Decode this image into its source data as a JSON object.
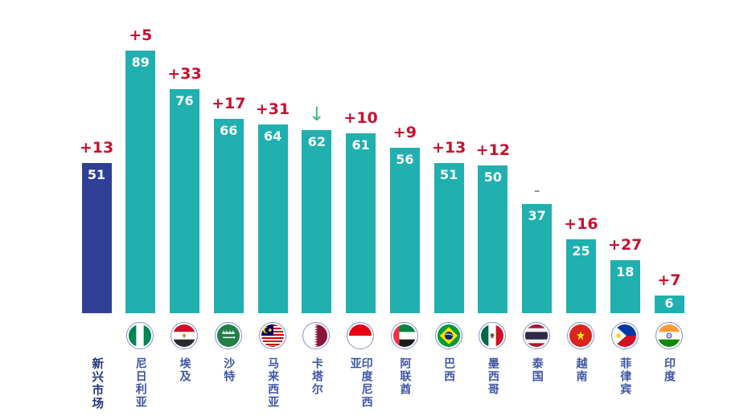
{
  "chart_data": {
    "type": "bar",
    "title": "",
    "xlabel": "",
    "ylabel": "",
    "ylim": [
      0,
      89
    ],
    "grid": false,
    "legend": "none",
    "categories": [
      "新兴市场",
      "尼日利亚",
      "埃及",
      "沙特",
      "马来西亚",
      "卡塔尔",
      "印度尼西亚",
      "阿联酋",
      "巴西",
      "墨西哥",
      "泰国",
      "越南",
      "菲律宾",
      "印度"
    ],
    "values": [
      51,
      89,
      76,
      66,
      64,
      62,
      61,
      56,
      51,
      50,
      37,
      25,
      18,
      6
    ],
    "changes": [
      "+13",
      "+5",
      "+33",
      "+17",
      "+31",
      "↓",
      "+10",
      "+9",
      "+13",
      "+12",
      "–",
      "+16",
      "+27",
      "+7"
    ],
    "bars": [
      {
        "label": "新兴市场",
        "value": 51,
        "change": "+13",
        "change_type": "up",
        "flag": null,
        "highlight": true
      },
      {
        "label": "尼日利亚",
        "value": 89,
        "change": "+5",
        "change_type": "up",
        "flag": "nigeria",
        "highlight": false
      },
      {
        "label": "埃及",
        "value": 76,
        "change": "+33",
        "change_type": "up",
        "flag": "egypt",
        "highlight": false
      },
      {
        "label": "沙特",
        "value": 66,
        "change": "+17",
        "change_type": "up",
        "flag": "saudi",
        "highlight": false
      },
      {
        "label": "马来西亚",
        "value": 64,
        "change": "+31",
        "change_type": "up",
        "flag": "malaysia",
        "highlight": false
      },
      {
        "label": "卡塔尔",
        "value": 62,
        "change": "↓",
        "change_type": "down",
        "flag": "qatar",
        "highlight": false
      },
      {
        "label": "印度尼西亚",
        "value": 61,
        "change": "+10",
        "change_type": "up",
        "flag": "indonesia",
        "highlight": false
      },
      {
        "label": "阿联酋",
        "value": 56,
        "change": "+9",
        "change_type": "up",
        "flag": "uae",
        "highlight": false
      },
      {
        "label": "巴西",
        "value": 51,
        "change": "+13",
        "change_type": "up",
        "flag": "brazil",
        "highlight": false
      },
      {
        "label": "墨西哥",
        "value": 50,
        "change": "+12",
        "change_type": "up",
        "flag": "mexico",
        "highlight": false
      },
      {
        "label": "泰国",
        "value": 37,
        "change": "–",
        "change_type": "flat",
        "flag": "thailand",
        "highlight": false
      },
      {
        "label": "越南",
        "value": 25,
        "change": "+16",
        "change_type": "up",
        "flag": "vietnam",
        "highlight": false
      },
      {
        "label": "菲律宾",
        "value": 18,
        "change": "+27",
        "change_type": "up",
        "flag": "philippines",
        "highlight": false
      },
      {
        "label": "印度",
        "value": 6,
        "change": "+7",
        "change_type": "up",
        "flag": "india",
        "highlight": false
      }
    ]
  },
  "colors": {
    "bar_teal": "#1fb0af",
    "bar_highlight_navy": "#303f96",
    "change_up_red": "#c8102e",
    "change_down_green": "#3dbb7e",
    "change_flat_gray": "#8f8f8f",
    "label_blue": "#3d55a5",
    "label_highlight_navy": "#21337e",
    "flag_ring_blue": "#8193cc",
    "value_text": "#ffffff",
    "background": "#ffffff"
  }
}
